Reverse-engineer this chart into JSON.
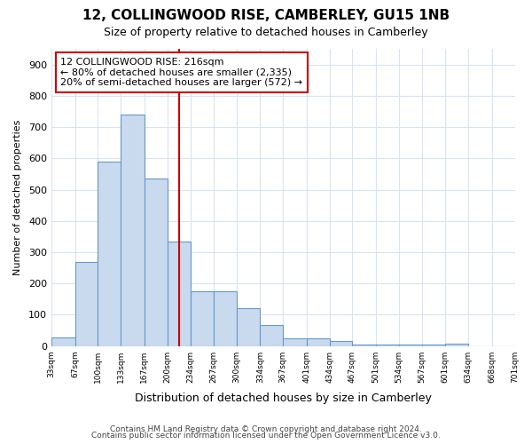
{
  "title": "12, COLLINGWOOD RISE, CAMBERLEY, GU15 1NB",
  "subtitle": "Size of property relative to detached houses in Camberley",
  "xlabel": "Distribution of detached houses by size in Camberley",
  "ylabel": "Number of detached properties",
  "bin_edges": [
    33,
    67,
    100,
    133,
    167,
    200,
    234,
    267,
    300,
    334,
    367,
    401,
    434,
    467,
    501,
    534,
    567,
    601,
    634,
    668,
    701
  ],
  "bar_heights": [
    27,
    270,
    590,
    740,
    535,
    335,
    175,
    175,
    120,
    67,
    25,
    25,
    15,
    4,
    4,
    4,
    4,
    8,
    0,
    0
  ],
  "bar_color": "#c9d9ee",
  "bar_edge_color": "#6699cc",
  "red_line_x": 217,
  "annotation_line1": "12 COLLINGWOOD RISE: 216sqm",
  "annotation_line2": "← 80% of detached houses are smaller (2,335)",
  "annotation_line3": "20% of semi-detached houses are larger (572) →",
  "annotation_box_color": "white",
  "annotation_box_edge_color": "#cc0000",
  "ylim": [
    0,
    950
  ],
  "yticks": [
    0,
    100,
    200,
    300,
    400,
    500,
    600,
    700,
    800,
    900
  ],
  "footer1": "Contains HM Land Registry data © Crown copyright and database right 2024.",
  "footer2": "Contains public sector information licensed under the Open Government Licence v3.0.",
  "background_color": "#ffffff",
  "plot_bg_color": "#ffffff",
  "grid_color": "#d8e4f0"
}
